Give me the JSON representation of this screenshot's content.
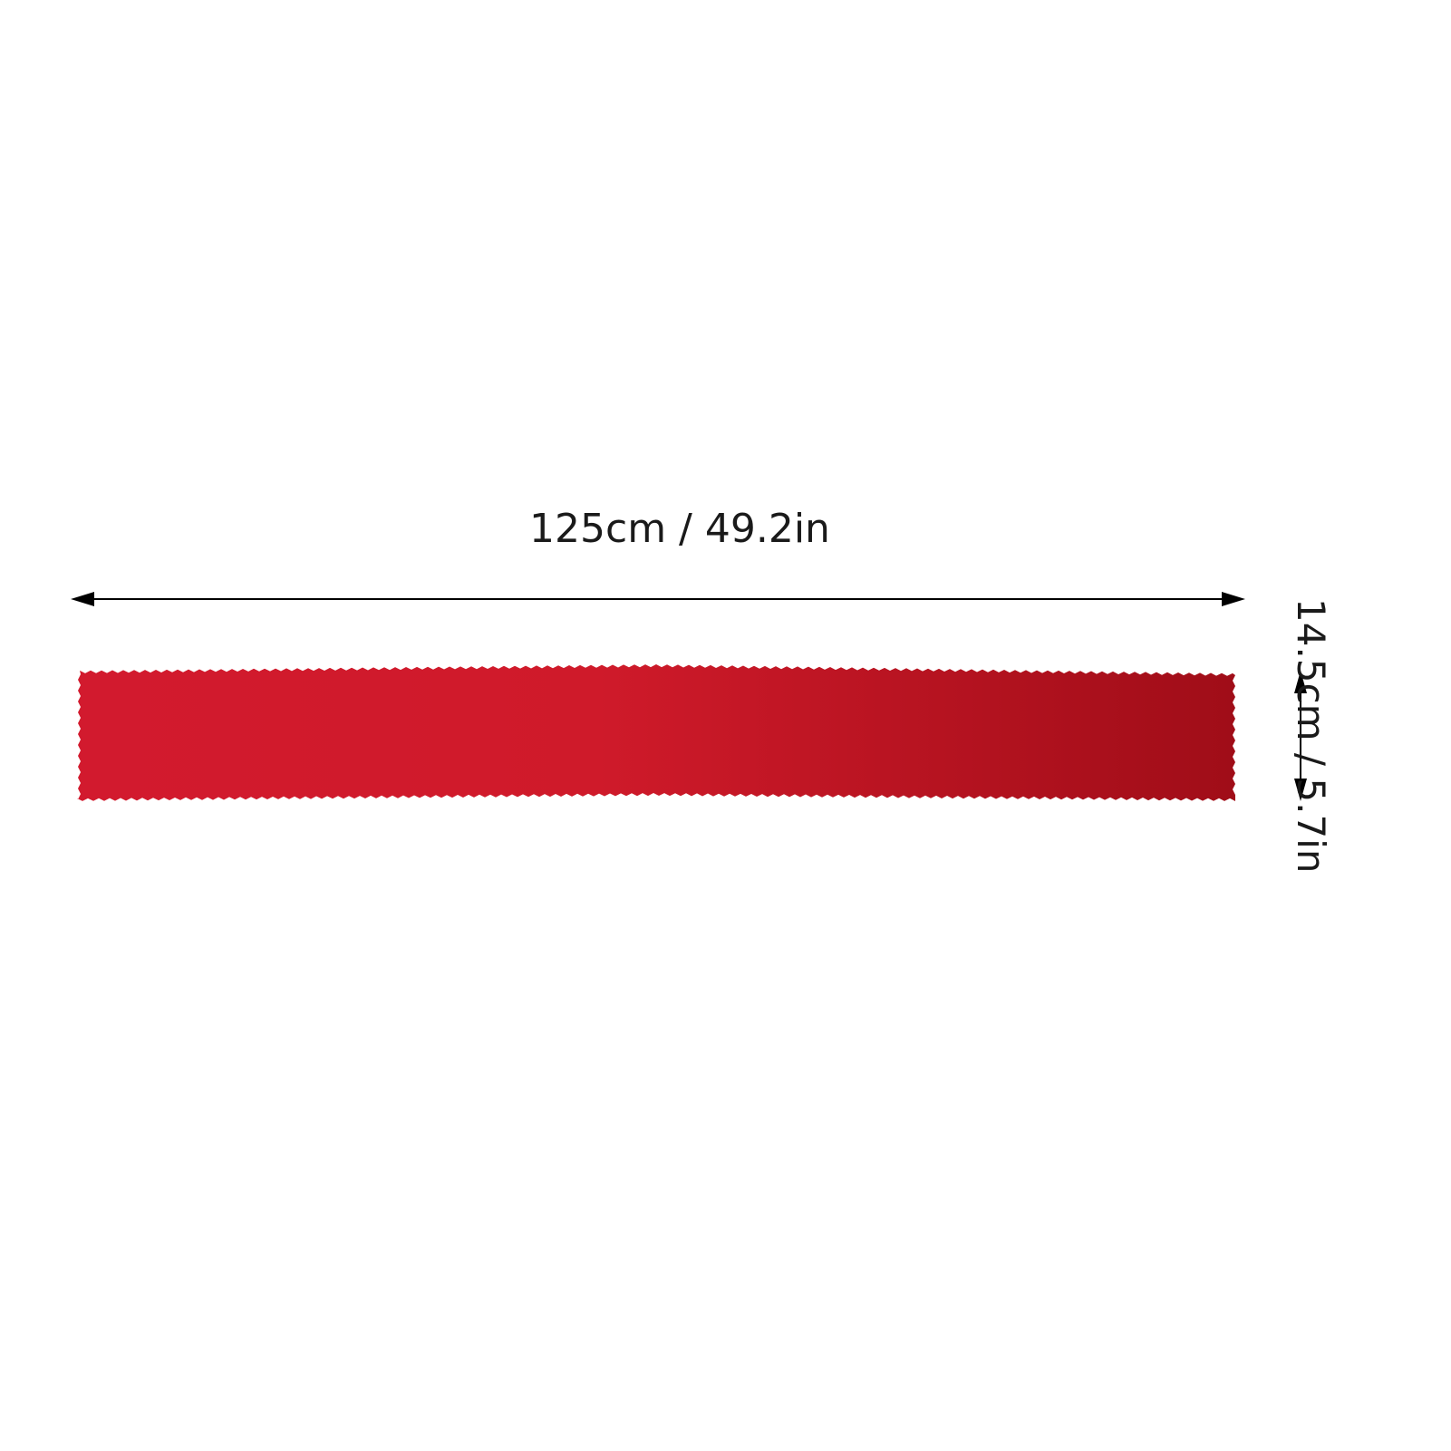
{
  "dimensions": {
    "length_label": "125cm / 49.2in",
    "width_label": "14.5cm / 5.7in"
  },
  "product": {
    "color_light": "#d21a2e",
    "color_dark": "#a00d18",
    "arrow_color": "#000000"
  },
  "icons": {
    "horizontal_arrow": "double-headed-arrow-horizontal",
    "vertical_arrow": "double-headed-arrow-vertical"
  }
}
